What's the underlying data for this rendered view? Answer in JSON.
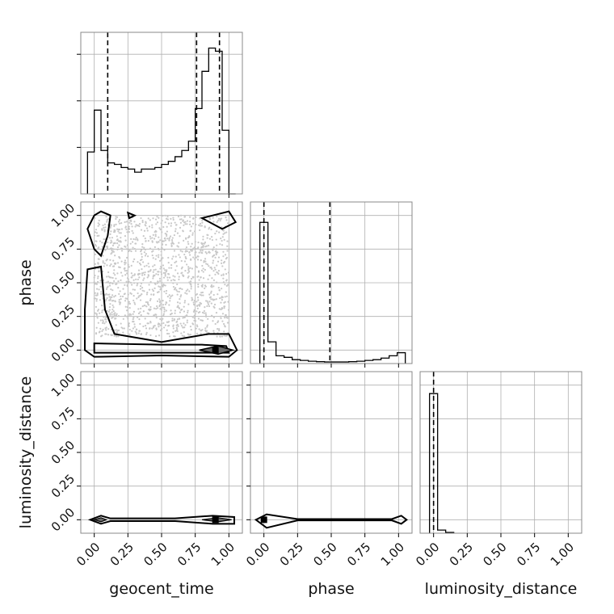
{
  "chart_data": {
    "type": "corner",
    "parameters": [
      "geocent_time",
      "phase",
      "luminosity_distance"
    ],
    "axis_range": [
      -0.1,
      1.1
    ],
    "ticks": [
      0.0,
      0.25,
      0.5,
      0.75,
      1.0
    ],
    "tick_labels": [
      "0.00",
      "0.25",
      "0.50",
      "0.75",
      "1.00"
    ],
    "grid": true,
    "colors": {
      "line": "#000000",
      "grid": "#b0b0b0",
      "scatter": "#c8c8c8",
      "frame": "#888888"
    },
    "histograms": [
      {
        "parameter": "geocent_time",
        "bin_edges": [
          -0.05,
          0.0,
          0.05,
          0.1,
          0.15,
          0.2,
          0.25,
          0.3,
          0.35,
          0.4,
          0.45,
          0.5,
          0.55,
          0.6,
          0.65,
          0.7,
          0.75,
          0.8,
          0.85,
          0.9,
          0.95,
          1.0,
          1.05
        ],
        "counts": [
          0.27,
          0.54,
          0.28,
          0.2,
          0.19,
          0.17,
          0.16,
          0.14,
          0.16,
          0.16,
          0.17,
          0.19,
          0.21,
          0.24,
          0.28,
          0.34,
          0.55,
          0.79,
          0.94,
          0.92,
          0.41,
          0.0
        ],
        "ymax": 1.0,
        "quantiles": [
          0.1,
          0.76,
          0.93
        ]
      },
      {
        "parameter": "phase",
        "bin_edges": [
          -0.03,
          0.03,
          0.09,
          0.15,
          0.21,
          0.27,
          0.33,
          0.39,
          0.45,
          0.51,
          0.57,
          0.63,
          0.69,
          0.75,
          0.81,
          0.87,
          0.93,
          0.99,
          1.05
        ],
        "counts": [
          0.91,
          0.14,
          0.05,
          0.04,
          0.025,
          0.02,
          0.015,
          0.012,
          0.01,
          0.01,
          0.01,
          0.012,
          0.015,
          0.02,
          0.025,
          0.035,
          0.05,
          0.07
        ],
        "ymax": 1.0,
        "quantiles": [
          0.0,
          0.49
        ]
      },
      {
        "parameter": "luminosity_distance",
        "bin_edges": [
          -0.03,
          0.03,
          0.09,
          0.15
        ],
        "counts": [
          0.9,
          0.02,
          0.005
        ],
        "ymax": 1.0,
        "quantiles": [
          0.0
        ]
      }
    ],
    "contour_panels": [
      {
        "x": "geocent_time",
        "y": "phase",
        "scatter_region": {
          "x": [
            0.0,
            1.0
          ],
          "y": [
            0.1,
            1.0
          ]
        },
        "density_peak": [
          0.9,
          0.0
        ]
      },
      {
        "x": "geocent_time",
        "y": "luminosity_distance",
        "density_peak": [
          0.9,
          0.0
        ]
      },
      {
        "x": "phase",
        "y": "luminosity_distance",
        "density_peak": [
          0.0,
          0.0
        ]
      }
    ]
  }
}
